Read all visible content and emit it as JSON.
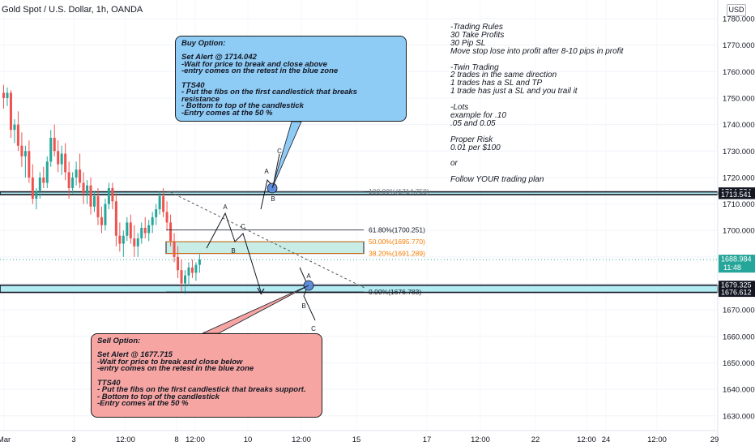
{
  "header": {
    "title": "Gold Spot / U.S. Dollar, 1h, OANDA",
    "currency_badge": "USD"
  },
  "chart_data": {
    "type": "candlestick",
    "ylim": [
      1622,
      1785
    ],
    "y_ticks": [
      "1780.000",
      "1770.000",
      "1760.000",
      "1750.000",
      "1740.000",
      "1730.000",
      "1720.000",
      "1710.000",
      "1700.000",
      "1690.000",
      "1680.000",
      "1670.000",
      "1660.000",
      "1650.000",
      "1640.000",
      "1630.000"
    ],
    "x_ticks": [
      "Mar",
      "3",
      "12:00",
      "8",
      "12:00",
      "10",
      "12:00",
      "15",
      "17",
      "12:00",
      "22",
      "12:00",
      "24",
      "12:00",
      "29"
    ],
    "price_labels": [
      {
        "value": 1714.584,
        "label": "1714.584",
        "style": "dark"
      },
      {
        "value": 1713.541,
        "label": "1713.541",
        "style": "dark"
      },
      {
        "value": 1688.984,
        "label": "1688.984",
        "style": "current",
        "sub": "11:48"
      },
      {
        "value": 1679.325,
        "label": "1679.325",
        "style": "dark"
      },
      {
        "value": 1676.612,
        "label": "1676.612",
        "style": "dark"
      }
    ],
    "fib_levels": [
      {
        "label": "100.00%(1714.758)",
        "value": 1714.758,
        "color": "#787b86"
      },
      {
        "label": "61.80%(1700.251)",
        "value": 1700.251,
        "color": "#131722"
      },
      {
        "label": "50.00%(1695.770)",
        "value": 1695.77,
        "color": "#f57c00"
      },
      {
        "label": "38.20%(1691.289)",
        "value": 1691.289,
        "color": "#f57c00"
      },
      {
        "label": "0.00%(1676.783)",
        "value": 1676.783,
        "color": "#131722"
      }
    ],
    "pattern_labels": [
      "A",
      "B",
      "C",
      "A",
      "B",
      "C",
      "A",
      "B",
      "C"
    ],
    "candles": [
      [
        1752,
        1755,
        1746,
        1750
      ],
      [
        1750,
        1754,
        1747,
        1752
      ],
      [
        1752,
        1753,
        1735,
        1738
      ],
      [
        1738,
        1742,
        1733,
        1740
      ],
      [
        1740,
        1745,
        1730,
        1732
      ],
      [
        1732,
        1737,
        1724,
        1728
      ],
      [
        1728,
        1732,
        1720,
        1730
      ],
      [
        1730,
        1734,
        1718,
        1720
      ],
      [
        1720,
        1725,
        1710,
        1712
      ],
      [
        1712,
        1716,
        1708,
        1715
      ],
      [
        1715,
        1722,
        1712,
        1720
      ],
      [
        1720,
        1724,
        1716,
        1718
      ],
      [
        1718,
        1728,
        1716,
        1726
      ],
      [
        1726,
        1738,
        1724,
        1735
      ],
      [
        1735,
        1740,
        1728,
        1730
      ],
      [
        1730,
        1734,
        1722,
        1725
      ],
      [
        1725,
        1732,
        1721,
        1729
      ],
      [
        1729,
        1733,
        1719,
        1722
      ],
      [
        1722,
        1726,
        1712,
        1716
      ],
      [
        1716,
        1722,
        1714,
        1720
      ],
      [
        1720,
        1726,
        1717,
        1723
      ],
      [
        1723,
        1729,
        1716,
        1718
      ],
      [
        1718,
        1722,
        1710,
        1714
      ],
      [
        1714,
        1719,
        1710,
        1717
      ],
      [
        1717,
        1720,
        1706,
        1709
      ],
      [
        1709,
        1715,
        1707,
        1713
      ],
      [
        1713,
        1716,
        1702,
        1705
      ],
      [
        1705,
        1709,
        1699,
        1702
      ],
      [
        1702,
        1712,
        1700,
        1710
      ],
      [
        1710,
        1718,
        1708,
        1716
      ],
      [
        1716,
        1718,
        1708,
        1711
      ],
      [
        1711,
        1714,
        1694,
        1698
      ],
      [
        1698,
        1703,
        1692,
        1695
      ],
      [
        1695,
        1700,
        1690,
        1698
      ],
      [
        1698,
        1705,
        1696,
        1703
      ],
      [
        1703,
        1706,
        1695,
        1697
      ],
      [
        1697,
        1702,
        1690,
        1694
      ],
      [
        1694,
        1699,
        1690,
        1697
      ],
      [
        1697,
        1703,
        1695,
        1701
      ],
      [
        1701,
        1705,
        1697,
        1699
      ],
      [
        1699,
        1704,
        1696,
        1702
      ],
      [
        1702,
        1707,
        1699,
        1705
      ],
      [
        1705,
        1710,
        1702,
        1708
      ],
      [
        1708,
        1715,
        1706,
        1713
      ],
      [
        1713,
        1716,
        1705,
        1707
      ],
      [
        1707,
        1711,
        1700,
        1703
      ],
      [
        1703,
        1706,
        1694,
        1696
      ],
      [
        1696,
        1699,
        1688,
        1690
      ],
      [
        1690,
        1694,
        1682,
        1685
      ],
      [
        1685,
        1689,
        1677,
        1680
      ],
      [
        1680,
        1685,
        1676,
        1683
      ],
      [
        1683,
        1688,
        1679,
        1686
      ],
      [
        1686,
        1689,
        1682,
        1684
      ],
      [
        1684,
        1688,
        1681,
        1687
      ],
      [
        1687,
        1691,
        1684,
        1689
      ]
    ]
  },
  "annotations": {
    "buy": "Buy Option:\n\nSet Alert @ 1714.042\n-Wait for price to break and close above\n-entry comes on the retest in the blue zone\n\nTTS40\n- Put the fibs on the first candlestick that breaks\nresistance\n- Bottom to top of the candlestick\n-Entry comes at the 50 %",
    "sell": "Sell Option:\n\nSet Alert @ 1677.715\n-Wait for price to break and close below\n-entry comes on the retest in the blue zone\n\nTTS40\n- Put the fibs on the first candlestick that breaks support.\n- Bottom to top of the candlestick\n-Entry comes at the 50 %",
    "rules": "-Trading Rules\n30 Take Profits\n30 Pip SL\nMove stop lose into profit after 8-10 pips in profit\n\n-Twin Trading\n2 trades in the same direction\n1 trades has a SL and TP\n1 trade has just a SL and you trail it\n\n-Lots\nexample for .10\n.05 and 0.05\n\nProper Risk\n0.01 per $100\n\nor\n\nFollow YOUR trading plan"
  },
  "colors": {
    "up": "#26a69a",
    "down": "#ef5350",
    "zone": "#b2ebf2",
    "current": "#26a69a",
    "fib50": "#f57c00"
  }
}
